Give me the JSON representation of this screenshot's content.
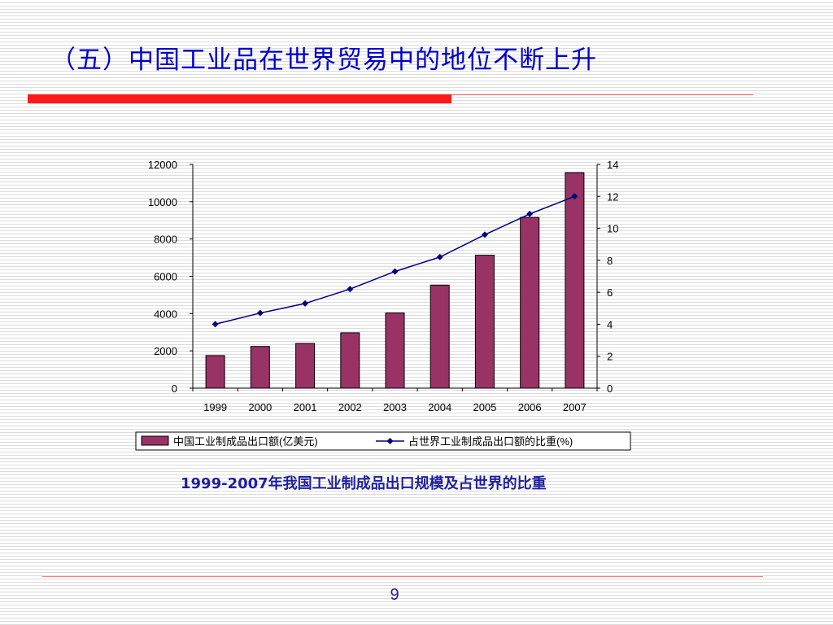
{
  "slide": {
    "title": "（五）中国工业品在世界贸易中的地位不断上升",
    "caption": "1999-2007年我国工业制成品出口规模及占世界的比重",
    "page_number": "9"
  },
  "colors": {
    "title": "#0000cc",
    "accent_bar": "#ff1a1a",
    "bar_fill": "#993366",
    "line": "#000080",
    "caption": "#1f1fa0"
  },
  "chart_data": {
    "type": "bar",
    "categories": [
      "1999",
      "2000",
      "2001",
      "2002",
      "2003",
      "2004",
      "2005",
      "2006",
      "2007"
    ],
    "series": [
      {
        "name": "中国工业制成品出口额(亿美元)",
        "type": "bar",
        "axis": "left",
        "values": [
          1750,
          2240,
          2400,
          2970,
          4030,
          5530,
          7130,
          9160,
          11560
        ]
      },
      {
        "name": "占世界工业制成品出口额的比重(%)",
        "type": "line",
        "axis": "right",
        "values": [
          4.0,
          4.7,
          5.3,
          6.2,
          7.3,
          8.2,
          9.6,
          10.9,
          12.0
        ]
      }
    ],
    "y_left": {
      "min": 0,
      "max": 12000,
      "ticks": [
        "0",
        "2000",
        "4000",
        "6000",
        "8000",
        "10000",
        "12000"
      ]
    },
    "y_right": {
      "min": 0,
      "max": 14,
      "ticks": [
        "0",
        "2",
        "4",
        "6",
        "8",
        "10",
        "12",
        "14"
      ]
    },
    "grid": false,
    "legend_position": "bottom"
  }
}
